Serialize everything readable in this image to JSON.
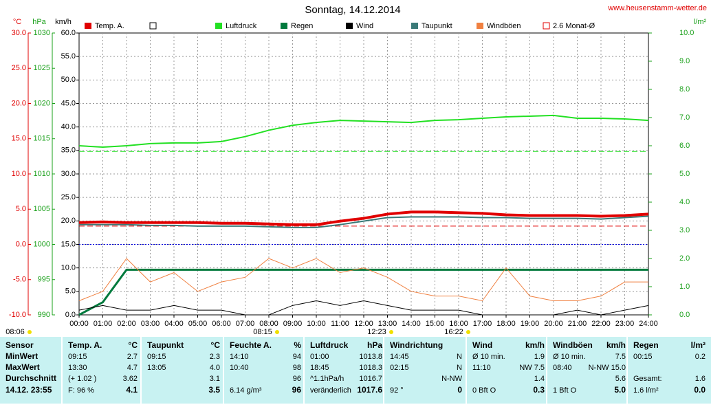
{
  "chart_data": {
    "type": "line",
    "title": "Sonntag, 14.12.2014",
    "site": "www.heusenstamm-wetter.de",
    "x": [
      0,
      1,
      2,
      3,
      4,
      5,
      6,
      7,
      8,
      9,
      10,
      11,
      12,
      13,
      14,
      15,
      16,
      17,
      18,
      19,
      20,
      21,
      22,
      23,
      24
    ],
    "xlim": [
      0,
      24
    ],
    "xticks": [
      {
        "value": 0,
        "label": "00:00"
      },
      {
        "value": 1,
        "label": "01:00"
      },
      {
        "value": 2,
        "label": "02:00"
      },
      {
        "value": 3,
        "label": "03:00"
      },
      {
        "value": 4,
        "label": "04:00"
      },
      {
        "value": 5,
        "label": "05:00"
      },
      {
        "value": 6,
        "label": "06:00"
      },
      {
        "value": 7,
        "label": "07:00"
      },
      {
        "value": 8,
        "label": "08:00"
      },
      {
        "value": 9,
        "label": "09:00"
      },
      {
        "value": 10,
        "label": "10:00"
      },
      {
        "value": 11,
        "label": "11:00"
      },
      {
        "value": 12,
        "label": "12:00"
      },
      {
        "value": 13,
        "label": "13:00"
      },
      {
        "value": 14,
        "label": "14:00"
      },
      {
        "value": 15,
        "label": "15:00"
      },
      {
        "value": 16,
        "label": "16:00"
      },
      {
        "value": 17,
        "label": "17:00"
      },
      {
        "value": 18,
        "label": "18:00"
      },
      {
        "value": 19,
        "label": "19:00"
      },
      {
        "value": 20,
        "label": "20:00"
      },
      {
        "value": 21,
        "label": "21:00"
      },
      {
        "value": 22,
        "label": "22:00"
      },
      {
        "value": 23,
        "label": "23:00"
      },
      {
        "value": 24,
        "label": "24:00"
      }
    ],
    "ylabel": "km/h",
    "ylim": [
      0,
      60
    ],
    "yticks": [
      {
        "value": 60,
        "label": "60.0"
      },
      {
        "value": 55,
        "label": "55.0"
      },
      {
        "value": 50,
        "label": "50.0"
      },
      {
        "value": 45,
        "label": "45.0"
      },
      {
        "value": 40,
        "label": "40.0"
      },
      {
        "value": 35,
        "label": "35.0"
      },
      {
        "value": 30,
        "label": "30.0"
      },
      {
        "value": 25,
        "label": "25.0"
      },
      {
        "value": 20,
        "label": "20.0"
      },
      {
        "value": 15,
        "label": "15.0"
      },
      {
        "value": 10,
        "label": "10.0"
      },
      {
        "value": 5,
        "label": "5.0"
      },
      {
        "value": 0,
        "label": "0.0"
      }
    ],
    "y2label": "l/m²",
    "y2lim": [
      0,
      10
    ],
    "y2ticks": [
      {
        "value": 10,
        "label": "10.0"
      },
      {
        "value": 9,
        "label": "9.0"
      },
      {
        "value": 8,
        "label": "8.0"
      },
      {
        "value": 7,
        "label": "7.0"
      },
      {
        "value": 6,
        "label": "6.0"
      },
      {
        "value": 5,
        "label": "5.0"
      },
      {
        "value": 4,
        "label": "4.0"
      },
      {
        "value": 3,
        "label": "3.0"
      },
      {
        "value": 2,
        "label": "2.0"
      },
      {
        "value": 1,
        "label": "1.0"
      },
      {
        "value": 0,
        "label": "0.0"
      }
    ],
    "temp_axis": {
      "label": "°C",
      "color": "#e00000",
      "lim": [
        -10,
        30
      ],
      "ticks": [
        {
          "value": 30,
          "label": "30.0"
        },
        {
          "value": 25,
          "label": "25.0"
        },
        {
          "value": 20,
          "label": "20.0"
        },
        {
          "value": 15,
          "label": "15.0"
        },
        {
          "value": 10,
          "label": "10.0"
        },
        {
          "value": 5,
          "label": "5.0"
        },
        {
          "value": 0,
          "label": "0.0"
        },
        {
          "value": -5,
          "label": "-5.0"
        },
        {
          "value": -10,
          "label": "-10.0"
        }
      ]
    },
    "pressure_axis": {
      "label": "hPa",
      "color": "#1aa01a",
      "lim": [
        990,
        1030
      ],
      "ticks": [
        1030,
        1025,
        1020,
        1015,
        1010,
        1005,
        1000,
        995,
        990
      ]
    },
    "grid": true,
    "series": [
      {
        "name": "Temp. A.",
        "color": "#e00000",
        "axis": "temp",
        "values": [
          3.1,
          3.2,
          3.1,
          3.1,
          3.1,
          3.1,
          3.0,
          3.0,
          2.9,
          2.8,
          2.8,
          3.3,
          3.7,
          4.3,
          4.6,
          4.6,
          4.5,
          4.4,
          4.2,
          4.1,
          4.1,
          4.1,
          4.0,
          4.1,
          4.3
        ]
      },
      {
        "name": "Luftdruck",
        "color": "#22e022",
        "axis": "pressure",
        "values": [
          1014.0,
          1013.8,
          1014.0,
          1014.3,
          1014.4,
          1014.4,
          1014.6,
          1015.3,
          1016.2,
          1016.9,
          1017.3,
          1017.6,
          1017.5,
          1017.4,
          1017.3,
          1017.6,
          1017.7,
          1017.9,
          1018.1,
          1018.2,
          1018.3,
          1017.9,
          1017.9,
          1017.8,
          1017.6
        ]
      },
      {
        "name": "Regen",
        "color": "#007a3d",
        "axis": "y2",
        "values": [
          0,
          0.45,
          1.6,
          1.6,
          1.6,
          1.6,
          1.6,
          1.6,
          1.6,
          1.6,
          1.6,
          1.6,
          1.6,
          1.6,
          1.6,
          1.6,
          1.6,
          1.6,
          1.6,
          1.6,
          1.6,
          1.6,
          1.6,
          1.6,
          1.6
        ]
      },
      {
        "name": "Wind",
        "color": "#000000",
        "axis": "y",
        "values": [
          1,
          2,
          1,
          1,
          2,
          1,
          1,
          0,
          0,
          2,
          3,
          2,
          3,
          2,
          1,
          1,
          1,
          0,
          0,
          0,
          0,
          1,
          0,
          1,
          2
        ]
      },
      {
        "name": "Taupunkt",
        "color": "#3a7a78",
        "axis": "temp",
        "values": [
          2.8,
          2.8,
          2.8,
          2.7,
          2.7,
          2.6,
          2.6,
          2.6,
          2.5,
          2.4,
          2.4,
          2.8,
          3.3,
          3.8,
          3.9,
          3.9,
          3.9,
          3.8,
          3.8,
          3.7,
          3.7,
          3.7,
          3.6,
          3.8,
          4.0
        ]
      },
      {
        "name": "Windböen",
        "color": "#f08040",
        "axis": "y",
        "values": [
          3,
          5,
          12,
          7,
          9,
          5,
          7,
          8,
          12,
          10,
          12,
          9,
          10,
          8,
          5,
          4,
          4,
          3,
          10,
          4,
          3,
          3,
          4,
          7,
          7
        ]
      }
    ],
    "monthly_mean": {
      "name": "2.6 Monat-Ø",
      "value": 2.6,
      "color": "#e00000"
    },
    "pressure_mean": 1013.2,
    "sun_times": [
      "08:06",
      "08:15",
      "12:23",
      "16:22"
    ]
  },
  "table": {
    "header": {
      "label": "Sensor",
      "cells": [
        [
          "Temp. A.",
          "°C"
        ],
        [
          "Taupunkt",
          "°C"
        ],
        [
          "Feuchte A.",
          "%"
        ],
        [
          "Luftdruck",
          "hPa"
        ],
        [
          "Windrichtung"
        ],
        [
          "Wind",
          "km/h"
        ],
        [
          "Windböen",
          "km/h"
        ],
        [
          "Regen",
          "l/m²"
        ]
      ]
    },
    "rows": [
      {
        "label": "MinWert",
        "cells": [
          [
            "09:15",
            "2.7"
          ],
          [
            "09:15",
            "2.3"
          ],
          [
            "14:10",
            "94"
          ],
          [
            "01:00",
            "1013.8"
          ],
          [
            "14:45",
            "N"
          ],
          [
            "Ø 10 min.",
            "1.9"
          ],
          [
            "Ø 10 min.",
            "7.5"
          ],
          [
            "00:15",
            "0.2"
          ]
        ]
      },
      {
        "label": "MaxWert",
        "cells": [
          [
            "13:30",
            "4.7"
          ],
          [
            "13:05",
            "4.0"
          ],
          [
            "10:40",
            "98"
          ],
          [
            "18:45",
            "1018.3"
          ],
          [
            "02:15",
            "N"
          ],
          [
            "11:10",
            "NW 7.5"
          ],
          [
            "08:40",
            "N-NW 15.0"
          ],
          []
        ]
      },
      {
        "label": "Durchschnitt",
        "cells": [
          [
            "(+ 1.02 )",
            "3.62"
          ],
          [
            "3.1"
          ],
          [
            "96"
          ],
          [
            "^1.1hPa/h",
            "1016.7"
          ],
          [
            "N-NW"
          ],
          [
            "1.4"
          ],
          [
            "5.6"
          ],
          [
            "Gesamt:",
            "1.6"
          ]
        ]
      },
      {
        "label": "14.12. 23:55",
        "cells": [
          [
            "F: 96 %",
            "4.1"
          ],
          [
            "3.5"
          ],
          [
            "6.14 g/m³",
            "96"
          ],
          [
            "veränderlich",
            "1017.6"
          ],
          [
            "92 °",
            "0"
          ],
          [
            "0 Bft O",
            "0.3"
          ],
          [
            "1 Bft O",
            "5.0"
          ],
          [
            "1.6 l/m²",
            "0.0"
          ]
        ]
      }
    ]
  }
}
